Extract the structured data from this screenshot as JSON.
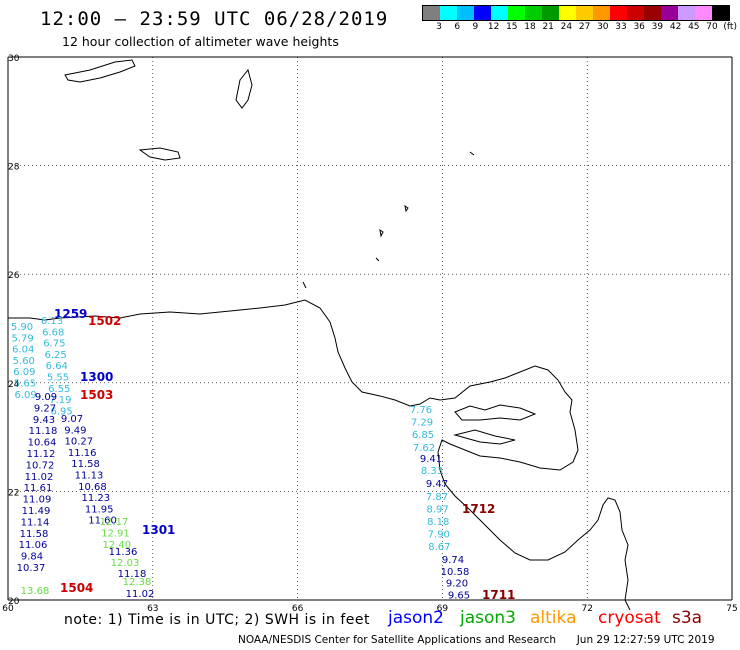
{
  "header": {
    "title": "12:00 — 23:59 UTC 06/28/2019",
    "subtitle": "12 hour collection of altimeter wave heights"
  },
  "legend": {
    "colors": [
      "#7f7f7f",
      "#00ffff",
      "#00bfff",
      "#0000ff",
      "#00ffff",
      "#00ff00",
      "#00cc00",
      "#009900",
      "#ffff00",
      "#ffcc00",
      "#ff9900",
      "#ff0000",
      "#cc0000",
      "#990000",
      "#990099",
      "#cc99ff",
      "#ff88ff",
      "#000000"
    ],
    "labels": [
      "3",
      "6",
      "9",
      "12",
      "15",
      "18",
      "21",
      "24",
      "27",
      "30",
      "33",
      "36",
      "39",
      "42",
      "45",
      "70",
      "(ft)"
    ]
  },
  "axes": {
    "lat_labels": [
      "30",
      "28",
      "26",
      "24",
      "22",
      "20"
    ],
    "lon_labels": [
      "60",
      "63",
      "66",
      "69",
      "72",
      "75"
    ]
  },
  "passes": [
    {
      "time": "1259",
      "color": "#0000cc"
    },
    {
      "time": "1502",
      "color": "#cc0000"
    },
    {
      "time": "1300",
      "color": "#0000cc"
    },
    {
      "time": "1503",
      "color": "#cc0000"
    },
    {
      "time": "1301",
      "color": "#0000cc"
    },
    {
      "time": "1504",
      "color": "#cc0000"
    },
    {
      "time": "1712",
      "color": "#880000"
    },
    {
      "time": "1711",
      "color": "#880000"
    }
  ],
  "tracks": [
    {
      "color": "#33bbdd",
      "values": [
        "5.90",
        "5.79",
        "6.04",
        "5.60",
        "6.09",
        "5.65",
        "6.09"
      ]
    },
    {
      "color": "#33bbdd",
      "values": [
        "6.13",
        "6.68",
        "6.75",
        "6.25",
        "6.64",
        "5.55",
        "6.55",
        "7.19",
        "6.95"
      ]
    },
    {
      "color": "#000099",
      "values": [
        "9.09",
        "9.27",
        "9.43",
        "11.18",
        "10.64",
        "11.12",
        "10.72",
        "11.02",
        "11.61",
        "11.09",
        "11.49",
        "11.14",
        "11.58",
        "11.06",
        "9.84",
        "10.37"
      ]
    },
    {
      "color": "#000099",
      "values": [
        "9.07",
        "9.49",
        "10.27",
        "11.16",
        "11.58",
        "11.13",
        "10.68",
        "11.23",
        "11.95",
        "11.60"
      ]
    },
    {
      "color": "#66dd44",
      "values": [
        "12.17",
        "12.91",
        "12.40"
      ]
    },
    {
      "color": "#000099",
      "values": [
        "11.36"
      ]
    },
    {
      "color": "#66dd44",
      "values": [
        "12.03"
      ]
    },
    {
      "color": "#000099",
      "values": [
        "11.18"
      ]
    },
    {
      "color": "#66dd44",
      "values": [
        "12.38"
      ]
    },
    {
      "color": "#000099",
      "values": [
        "11.02"
      ]
    },
    {
      "color": "#66dd44",
      "values": [
        "13.68"
      ]
    },
    {
      "color": "#33bbdd",
      "values": [
        "7.76",
        "7.29",
        "6.85",
        "7.62"
      ]
    },
    {
      "color": "#000099",
      "values": [
        "9.41"
      ]
    },
    {
      "color": "#33bbdd",
      "values": [
        "8.33"
      ]
    },
    {
      "color": "#000099",
      "values": [
        "9.47"
      ]
    },
    {
      "color": "#33bbdd",
      "values": [
        "7.87",
        "8.97",
        "8.18",
        "7.90",
        "8.67"
      ]
    },
    {
      "color": "#000099",
      "values": [
        "9.74",
        "10.58",
        "9.20",
        "9.65"
      ]
    }
  ],
  "footer": {
    "note": "note:  1) Time is in UTC;  2) SWH is in feet",
    "satellites": [
      {
        "name": "jason2",
        "color": "#0000ff"
      },
      {
        "name": "jason3",
        "color": "#00aa00"
      },
      {
        "name": "altika",
        "color": "#ff9900"
      },
      {
        "name": "cryosat",
        "color": "#ff0000"
      },
      {
        "name": "s3a",
        "color": "#880000"
      }
    ],
    "credit": "NOAA/NESDIS Center for Satellite Applications and Research",
    "timestamp": "Jun 29 12:27:59 UTC 2019"
  }
}
